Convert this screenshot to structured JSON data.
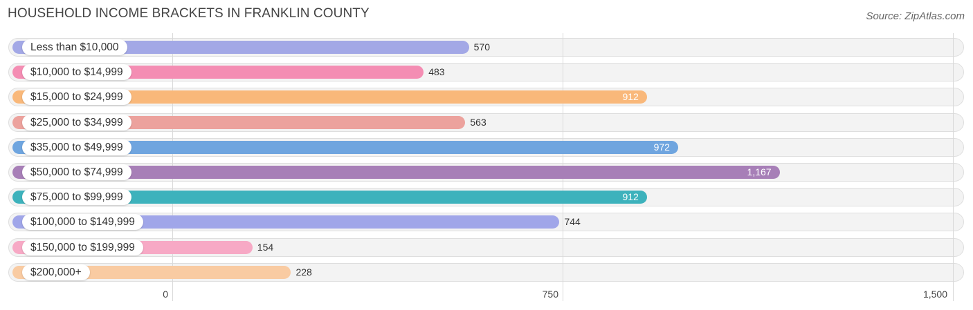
{
  "title": "HOUSEHOLD INCOME BRACKETS IN FRANKLIN COUNTY",
  "source": "Source: ZipAtlas.com",
  "chart_data": {
    "type": "bar",
    "orientation": "horizontal",
    "categories": [
      "Less than $10,000",
      "$10,000 to $14,999",
      "$15,000 to $24,999",
      "$25,000 to $34,999",
      "$35,000 to $49,999",
      "$50,000 to $74,999",
      "$75,000 to $99,999",
      "$100,000 to $149,999",
      "$150,000 to $199,999",
      "$200,000+"
    ],
    "values": [
      570,
      483,
      912,
      563,
      972,
      1167,
      912,
      744,
      154,
      228
    ],
    "value_labels": [
      "570",
      "483",
      "912",
      "563",
      "972",
      "1,167",
      "912",
      "744",
      "154",
      "228"
    ],
    "colors": [
      "#a3a8e6",
      "#f48db3",
      "#f9b87a",
      "#eca29d",
      "#6fa5df",
      "#a77fb7",
      "#3db2bc",
      "#a0a6e9",
      "#f7a9c5",
      "#f9cba2"
    ],
    "xlim": [
      0,
      1500
    ],
    "xticks": [
      {
        "value": 0,
        "label": "0"
      },
      {
        "value": 750,
        "label": "750"
      },
      {
        "value": 1500,
        "label": "1,500"
      }
    ],
    "grid": true,
    "xlabel": "",
    "ylabel": ""
  }
}
